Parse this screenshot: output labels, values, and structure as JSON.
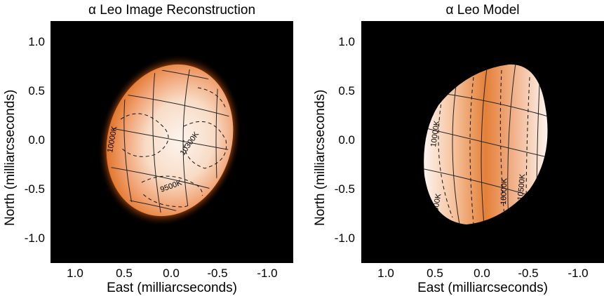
{
  "panels": [
    {
      "title": "α Leo Image Reconstruction",
      "ylabel": "North (milliarcseconds)",
      "xlabel": "East (milliarcseconds)",
      "yticks": [
        "1.0",
        "0.5",
        "0.0",
        "-0.5",
        "-1.0"
      ],
      "xticks": [
        "1.0",
        "0.5",
        "0.0",
        "-0.5",
        "-1.0"
      ],
      "contour_labels": [
        "10000K",
        "10300K",
        "9500K"
      ]
    },
    {
      "title": "α Leo Model",
      "ylabel": "North (milliarcseconds)",
      "xlabel": "East (milliarcseconds)",
      "yticks": [
        "1.0",
        "0.5",
        "0.0",
        "-0.5",
        "-1.0"
      ],
      "xticks": [
        "1.0",
        "0.5",
        "0.0",
        "-0.5",
        "-1.0"
      ],
      "contour_labels": [
        "10000K",
        "10000K",
        "10500K",
        "9500K"
      ]
    }
  ],
  "colors": {
    "background": "#000000",
    "stellar_hot": "#fbefe6",
    "stellar_cool": "#e07020",
    "grid": "#222222"
  }
}
